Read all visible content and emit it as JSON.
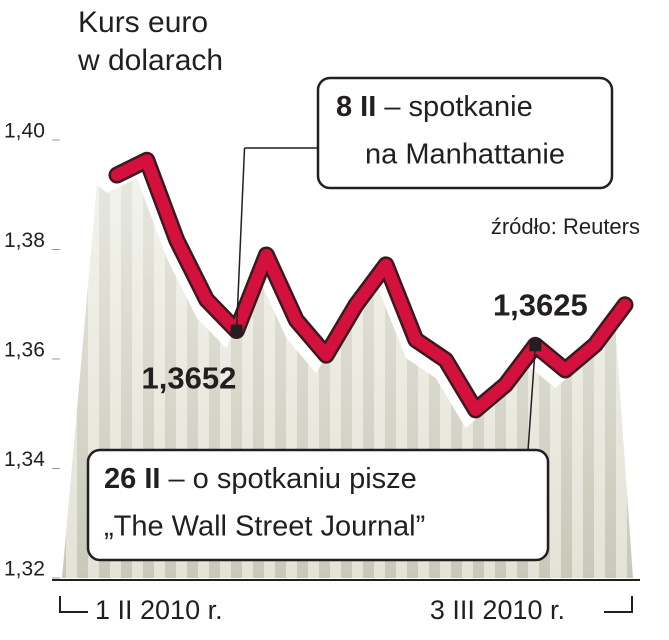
{
  "chart_data": {
    "type": "line",
    "title_lines": [
      "Kurs euro",
      "w dolarach"
    ],
    "source": "źródło: Reuters",
    "categories": [
      "1 II 2010 r.",
      null,
      null,
      null,
      null,
      null,
      null,
      null,
      null,
      null,
      null,
      null,
      null,
      null,
      null,
      null,
      null,
      "3 III 2010 r."
    ],
    "values": [
      1.3936,
      1.3963,
      1.3817,
      1.3708,
      1.3652,
      1.379,
      1.3671,
      1.3607,
      1.3699,
      1.3772,
      1.3635,
      1.3598,
      1.3507,
      1.3553,
      1.3625,
      1.358,
      1.3626,
      1.3699
    ],
    "value_labels": [
      null,
      null,
      null,
      null,
      "1,3652",
      null,
      null,
      null,
      null,
      null,
      null,
      null,
      null,
      null,
      "1,3625",
      null,
      null,
      null
    ],
    "color": "#d4103c",
    "ylim": [
      1.32,
      1.4
    ],
    "yticks": [
      {
        "value": 1.32,
        "label": "1,32"
      },
      {
        "value": 1.34,
        "label": "1,34"
      },
      {
        "value": 1.36,
        "label": "1,36"
      },
      {
        "value": 1.38,
        "label": "1,38"
      },
      {
        "value": 1.4,
        "label": "1,40"
      }
    ],
    "grid": false,
    "annotations": [
      {
        "bold": "8 II",
        "lines": [
          "– spotkanie",
          "na Manhattanie"
        ]
      },
      {
        "bold": "26 II",
        "lines": [
          "– o spotkaniu pisze",
          "„The Wall Street Journal”"
        ]
      }
    ]
  }
}
